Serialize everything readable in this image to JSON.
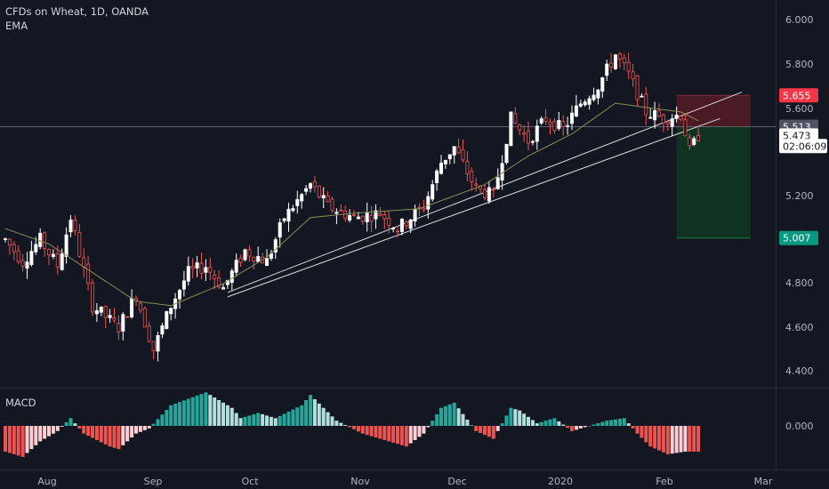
{
  "header": {
    "title": "CFDs on Wheat, 1D, OANDA",
    "indicator": "EMA"
  },
  "macd_panel": {
    "label": "MACD",
    "zero_label": "0.000"
  },
  "colors": {
    "background": "#131722",
    "up": "#ffffff",
    "down": "#ef5350",
    "ema": "#8b8b55",
    "trendline": "#d8d8d8",
    "stop_zone": "#4a1b24",
    "target_zone": "#0f3320",
    "macd_pos_strong": "#26a69a",
    "macd_pos_weak": "#b2dfdb",
    "macd_neg_strong": "#ef5350",
    "macd_neg_weak": "#ffcdd2"
  },
  "chart_data": {
    "type": "candlestick",
    "title": "CFDs on Wheat, 1D, OANDA",
    "x_ticks": [
      "Aug",
      "Sep",
      "Oct",
      "Nov",
      "Dec",
      "2020",
      "Feb",
      "Mar"
    ],
    "y_ticks": [
      "6.000",
      "5.800",
      "5.600",
      "5.200",
      "4.800",
      "4.600",
      "4.400"
    ],
    "ylim": [
      4.3,
      6.1
    ],
    "anchors": [
      {
        "t": 0,
        "v": 5.0
      },
      {
        "t": 4,
        "v": 4.9
      },
      {
        "t": 8,
        "v": 5.0
      },
      {
        "t": 12,
        "v": 4.88
      },
      {
        "t": 15,
        "v": 5.1
      },
      {
        "t": 20,
        "v": 4.7
      },
      {
        "t": 26,
        "v": 4.6
      },
      {
        "t": 30,
        "v": 4.75
      },
      {
        "t": 34,
        "v": 4.5
      },
      {
        "t": 38,
        "v": 4.7
      },
      {
        "t": 42,
        "v": 4.85
      },
      {
        "t": 46,
        "v": 4.88
      },
      {
        "t": 50,
        "v": 4.78
      },
      {
        "t": 55,
        "v": 4.95
      },
      {
        "t": 60,
        "v": 4.9
      },
      {
        "t": 64,
        "v": 5.1
      },
      {
        "t": 70,
        "v": 5.25
      },
      {
        "t": 74,
        "v": 5.15
      },
      {
        "t": 80,
        "v": 5.1
      },
      {
        "t": 86,
        "v": 5.12
      },
      {
        "t": 90,
        "v": 5.05
      },
      {
        "t": 96,
        "v": 5.15
      },
      {
        "t": 100,
        "v": 5.35
      },
      {
        "t": 103,
        "v": 5.42
      },
      {
        "t": 108,
        "v": 5.23
      },
      {
        "t": 112,
        "v": 5.2
      },
      {
        "t": 116,
        "v": 5.55
      },
      {
        "t": 120,
        "v": 5.45
      },
      {
        "t": 124,
        "v": 5.55
      },
      {
        "t": 128,
        "v": 5.5
      },
      {
        "t": 132,
        "v": 5.62
      },
      {
        "t": 136,
        "v": 5.7
      },
      {
        "t": 140,
        "v": 5.84
      },
      {
        "t": 143,
        "v": 5.75
      },
      {
        "t": 147,
        "v": 5.58
      },
      {
        "t": 151,
        "v": 5.55
      },
      {
        "t": 155,
        "v": 5.57
      },
      {
        "t": 157,
        "v": 5.4
      },
      {
        "t": 159,
        "v": 5.473
      }
    ],
    "ema_anchors": [
      {
        "t": 0,
        "v": 5.05
      },
      {
        "t": 10,
        "v": 4.98
      },
      {
        "t": 20,
        "v": 4.85
      },
      {
        "t": 30,
        "v": 4.72
      },
      {
        "t": 38,
        "v": 4.7
      },
      {
        "t": 50,
        "v": 4.8
      },
      {
        "t": 60,
        "v": 4.92
      },
      {
        "t": 70,
        "v": 5.1
      },
      {
        "t": 80,
        "v": 5.12
      },
      {
        "t": 95,
        "v": 5.14
      },
      {
        "t": 110,
        "v": 5.25
      },
      {
        "t": 120,
        "v": 5.38
      },
      {
        "t": 130,
        "v": 5.48
      },
      {
        "t": 140,
        "v": 5.62
      },
      {
        "t": 147,
        "v": 5.6
      },
      {
        "t": 155,
        "v": 5.58
      },
      {
        "t": 159,
        "v": 5.54
      }
    ],
    "trendlines": [
      {
        "from": {
          "t": 51,
          "v": 4.76
        },
        "to": {
          "t": 169,
          "v": 5.67
        }
      },
      {
        "from": {
          "t": 51,
          "v": 4.74
        },
        "to": {
          "t": 164,
          "v": 5.55
        }
      }
    ],
    "position": {
      "stop": 5.655,
      "entry": 5.513,
      "target": 5.007,
      "t_start": 154,
      "t_end": 171
    },
    "price_labels": [
      {
        "label": "5.655",
        "value": 5.655,
        "bg": "#f23645",
        "color": "#ffffff"
      },
      {
        "label": "5.513",
        "value": 5.513,
        "bg": "#4e5261",
        "color": "#ffffff"
      },
      {
        "label": "5.473",
        "value": 5.473,
        "bg": "#ffffff",
        "color": "#131722"
      },
      {
        "label": "02:06:09",
        "value": 5.425,
        "bg": "#ffffff",
        "color": "#131722"
      },
      {
        "label": "5.007",
        "value": 5.007,
        "bg": "#089981",
        "color": "#ffffff"
      }
    ],
    "macd_anchors": [
      {
        "t": 0,
        "v": -0.1
      },
      {
        "t": 4,
        "v": -0.12
      },
      {
        "t": 8,
        "v": -0.06
      },
      {
        "t": 12,
        "v": -0.02
      },
      {
        "t": 15,
        "v": 0.03
      },
      {
        "t": 18,
        "v": -0.03
      },
      {
        "t": 24,
        "v": -0.08
      },
      {
        "t": 26,
        "v": -0.09
      },
      {
        "t": 30,
        "v": -0.03
      },
      {
        "t": 33,
        "v": -0.01
      },
      {
        "t": 38,
        "v": 0.08
      },
      {
        "t": 46,
        "v": 0.13
      },
      {
        "t": 52,
        "v": 0.07
      },
      {
        "t": 54,
        "v": 0.03
      },
      {
        "t": 58,
        "v": 0.05
      },
      {
        "t": 62,
        "v": 0.03
      },
      {
        "t": 68,
        "v": 0.08
      },
      {
        "t": 70,
        "v": 0.12
      },
      {
        "t": 76,
        "v": 0.02
      },
      {
        "t": 82,
        "v": -0.03
      },
      {
        "t": 88,
        "v": -0.06
      },
      {
        "t": 92,
        "v": -0.08
      },
      {
        "t": 96,
        "v": -0.03
      },
      {
        "t": 100,
        "v": 0.07
      },
      {
        "t": 103,
        "v": 0.09
      },
      {
        "t": 108,
        "v": -0.02
      },
      {
        "t": 112,
        "v": -0.05
      },
      {
        "t": 116,
        "v": 0.07
      },
      {
        "t": 118,
        "v": 0.06
      },
      {
        "t": 122,
        "v": 0.01
      },
      {
        "t": 126,
        "v": 0.03
      },
      {
        "t": 130,
        "v": -0.02
      },
      {
        "t": 134,
        "v": 0.0
      },
      {
        "t": 138,
        "v": 0.02
      },
      {
        "t": 142,
        "v": 0.03
      },
      {
        "t": 145,
        "v": -0.03
      },
      {
        "t": 148,
        "v": -0.08
      },
      {
        "t": 152,
        "v": -0.11
      },
      {
        "t": 156,
        "v": -0.1
      },
      {
        "t": 159,
        "v": -0.1
      }
    ],
    "macd_ylim": [
      -0.17,
      0.17
    ]
  }
}
